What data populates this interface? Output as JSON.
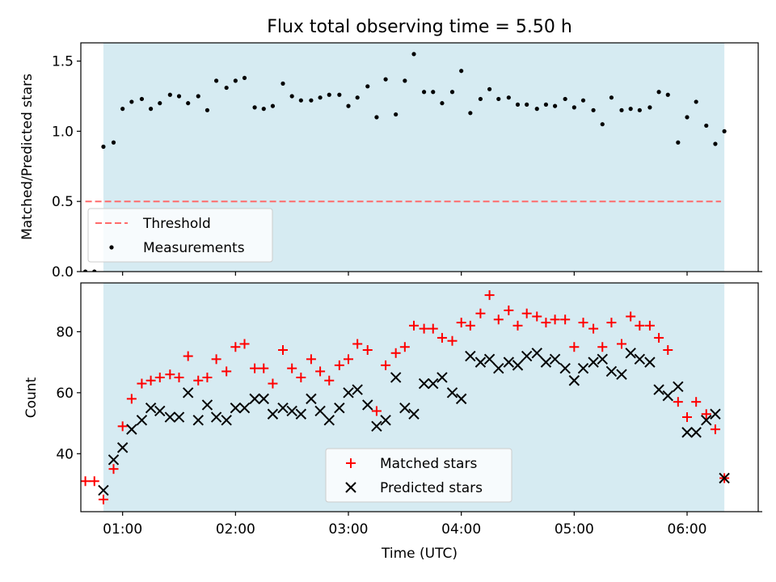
{
  "title": "Flux total observing time = 5.50 h",
  "chart_data": [
    {
      "type": "scatter",
      "title": "Flux total observing time = 5.50 h",
      "xlabel": "",
      "ylabel": "Matched/Predicted stars",
      "xlim": [
        0.63,
        6.63
      ],
      "ylim": [
        0.0,
        1.63
      ],
      "yticks": [
        0.0,
        0.5,
        1.0,
        1.5
      ],
      "ytick_labels": [
        "0.0",
        "0.5",
        "1.0",
        "1.5"
      ],
      "xticks": [
        1,
        2,
        3,
        4,
        5,
        6
      ],
      "shaded_span": {
        "x": [
          0.83,
          6.33
        ],
        "color": "#add8e6"
      },
      "legend": {
        "position": "lower-left",
        "entries": [
          "Threshold",
          "Measurements"
        ]
      },
      "series": [
        {
          "name": "Threshold",
          "kind": "dashed-line",
          "color": "#ff6b6b",
          "x": [
            0.67,
            6.3
          ],
          "y": [
            0.5,
            0.5
          ]
        },
        {
          "name": "Measurements",
          "kind": "dot",
          "color": "#000000",
          "x": [
            0.67,
            0.75,
            0.83,
            0.92,
            1.0,
            1.08,
            1.17,
            1.25,
            1.33,
            1.42,
            1.5,
            1.58,
            1.67,
            1.75,
            1.83,
            1.92,
            2.0,
            2.08,
            2.17,
            2.25,
            2.33,
            2.42,
            2.5,
            2.58,
            2.67,
            2.75,
            2.83,
            2.92,
            3.0,
            3.08,
            3.17,
            3.25,
            3.33,
            3.42,
            3.5,
            3.58,
            3.67,
            3.75,
            3.83,
            3.92,
            4.0,
            4.08,
            4.17,
            4.25,
            4.33,
            4.42,
            4.5,
            4.58,
            4.67,
            4.75,
            4.83,
            4.92,
            5.0,
            5.08,
            5.17,
            5.25,
            5.33,
            5.42,
            5.5,
            5.58,
            5.67,
            5.75,
            5.83,
            5.92,
            6.0,
            6.08,
            6.17,
            6.25,
            6.33
          ],
          "y": [
            0.0,
            0.0,
            0.89,
            0.92,
            1.16,
            1.21,
            1.23,
            1.16,
            1.2,
            1.26,
            1.25,
            1.2,
            1.25,
            1.15,
            1.36,
            1.31,
            1.36,
            1.38,
            1.17,
            1.16,
            1.18,
            1.34,
            1.25,
            1.22,
            1.22,
            1.24,
            1.26,
            1.26,
            1.18,
            1.24,
            1.32,
            1.1,
            1.37,
            1.12,
            1.36,
            1.55,
            1.28,
            1.28,
            1.2,
            1.28,
            1.43,
            1.13,
            1.23,
            1.3,
            1.23,
            1.24,
            1.19,
            1.19,
            1.16,
            1.19,
            1.18,
            1.23,
            1.17,
            1.22,
            1.15,
            1.05,
            1.24,
            1.15,
            1.16,
            1.15,
            1.17,
            1.28,
            1.26,
            0.92,
            1.1,
            1.21,
            1.04,
            0.91,
            1.0
          ]
        }
      ]
    },
    {
      "type": "scatter",
      "title": "",
      "xlabel": "Time (UTC)",
      "ylabel": "Count",
      "xlim": [
        0.63,
        6.63
      ],
      "ylim": [
        21,
        96
      ],
      "yticks": [
        40,
        60,
        80
      ],
      "ytick_labels": [
        "40",
        "60",
        "80"
      ],
      "xticks": [
        1,
        2,
        3,
        4,
        5,
        6
      ],
      "xtick_labels": [
        "01:00",
        "02:00",
        "03:00",
        "04:00",
        "05:00",
        "06:00"
      ],
      "shaded_span": {
        "x": [
          0.83,
          6.33
        ],
        "color": "#add8e6"
      },
      "legend": {
        "position": "lower-center",
        "entries": [
          "Matched stars",
          "Predicted stars"
        ]
      },
      "series": [
        {
          "name": "Matched stars",
          "kind": "plus",
          "color": "#ff0000",
          "x": [
            0.67,
            0.75,
            0.83,
            0.92,
            1.0,
            1.08,
            1.17,
            1.25,
            1.33,
            1.42,
            1.5,
            1.58,
            1.67,
            1.75,
            1.83,
            1.92,
            2.0,
            2.08,
            2.17,
            2.25,
            2.33,
            2.42,
            2.5,
            2.58,
            2.67,
            2.75,
            2.83,
            2.92,
            3.0,
            3.08,
            3.17,
            3.25,
            3.33,
            3.42,
            3.5,
            3.58,
            3.67,
            3.75,
            3.83,
            3.92,
            4.0,
            4.08,
            4.17,
            4.25,
            4.33,
            4.42,
            4.5,
            4.58,
            4.67,
            4.75,
            4.83,
            4.92,
            5.0,
            5.08,
            5.17,
            5.25,
            5.33,
            5.42,
            5.5,
            5.58,
            5.67,
            5.75,
            5.83,
            5.92,
            6.0,
            6.08,
            6.17,
            6.25,
            6.33
          ],
          "y": [
            31,
            31,
            25,
            35,
            49,
            58,
            63,
            64,
            65,
            66,
            65,
            72,
            64,
            65,
            71,
            67,
            75,
            76,
            68,
            68,
            63,
            74,
            68,
            65,
            71,
            67,
            64,
            69,
            71,
            76,
            74,
            54,
            69,
            73,
            75,
            82,
            81,
            81,
            78,
            77,
            83,
            82,
            86,
            92,
            84,
            87,
            82,
            86,
            85,
            83,
            84,
            84,
            75,
            83,
            81,
            75,
            83,
            76,
            85,
            82,
            82,
            78,
            74,
            57,
            52,
            57,
            53,
            48,
            32
          ]
        },
        {
          "name": "Predicted stars",
          "kind": "cross",
          "color": "#000000",
          "x": [
            0.83,
            0.92,
            1.0,
            1.08,
            1.17,
            1.25,
            1.33,
            1.42,
            1.5,
            1.58,
            1.67,
            1.75,
            1.83,
            1.92,
            2.0,
            2.08,
            2.17,
            2.25,
            2.33,
            2.42,
            2.5,
            2.58,
            2.67,
            2.75,
            2.83,
            2.92,
            3.0,
            3.08,
            3.17,
            3.25,
            3.33,
            3.42,
            3.5,
            3.58,
            3.67,
            3.75,
            3.83,
            3.92,
            4.0,
            4.08,
            4.17,
            4.25,
            4.33,
            4.42,
            4.5,
            4.58,
            4.67,
            4.75,
            4.83,
            4.92,
            5.0,
            5.08,
            5.17,
            5.25,
            5.33,
            5.42,
            5.5,
            5.58,
            5.67,
            5.75,
            5.83,
            5.92,
            6.0,
            6.08,
            6.17,
            6.25,
            6.33
          ],
          "y": [
            28,
            38,
            42,
            48,
            51,
            55,
            54,
            52,
            52,
            60,
            51,
            56,
            52,
            51,
            55,
            55,
            58,
            58,
            53,
            55,
            54,
            53,
            58,
            54,
            51,
            55,
            60,
            61,
            56,
            49,
            51,
            65,
            55,
            53,
            63,
            63,
            65,
            60,
            58,
            72,
            70,
            71,
            68,
            70,
            69,
            72,
            73,
            70,
            71,
            68,
            64,
            68,
            70,
            71,
            67,
            66,
            73,
            71,
            70,
            61,
            59,
            62,
            47,
            47,
            51,
            53,
            32
          ]
        }
      ]
    }
  ]
}
